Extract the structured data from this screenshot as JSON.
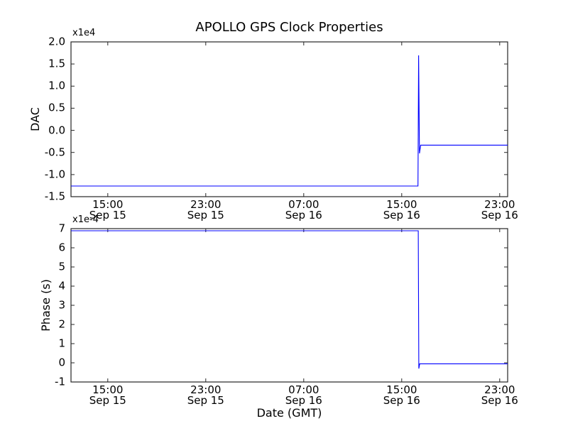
{
  "title": "APOLLO GPS Clock Properties",
  "xlabel": "Date (GMT)",
  "line_color": "#0000ff",
  "frame_color": "#262626",
  "chart_data": [
    {
      "type": "line",
      "position": "top",
      "ylabel": "DAC",
      "y_offset_label": "x1e4",
      "ylim": [
        -15000,
        20000
      ],
      "grid": false,
      "legend": null,
      "yticks": [
        {
          "value": 20000,
          "label": "2.0"
        },
        {
          "value": 15000,
          "label": "1.5"
        },
        {
          "value": 10000,
          "label": "1.0"
        },
        {
          "value": 5000,
          "label": "0.5"
        },
        {
          "value": 0,
          "label": "0.0"
        },
        {
          "value": -5000,
          "label": "-0.5"
        },
        {
          "value": -10000,
          "label": "-1.0"
        },
        {
          "value": -15000,
          "label": "-1.5"
        }
      ],
      "xlim_hours": [
        12.0,
        47.65
      ],
      "x_hours_reference": "hours after Sep 15 00:00 GMT",
      "xticks": [
        {
          "hour": 15,
          "time": "15:00",
          "date": "Sep 15"
        },
        {
          "hour": 23,
          "time": "23:00",
          "date": "Sep 15"
        },
        {
          "hour": 31,
          "time": "07:00",
          "date": "Sep 16"
        },
        {
          "hour": 39,
          "time": "15:00",
          "date": "Sep 16"
        },
        {
          "hour": 47,
          "time": "23:00",
          "date": "Sep 16"
        }
      ],
      "series": [
        {
          "name": "DAC",
          "color": "#0000ff",
          "points": [
            [
              12.0,
              -12590
            ],
            [
              40.33,
              -12590
            ],
            [
              40.38,
              16950
            ],
            [
              40.45,
              -5200
            ],
            [
              40.55,
              -3350
            ],
            [
              47.65,
              -3350
            ]
          ]
        }
      ]
    },
    {
      "type": "line",
      "position": "bottom",
      "ylabel": "Phase (s)",
      "y_offset_label": "x1e-4",
      "ylim": [
        -0.0001,
        0.0007
      ],
      "grid": false,
      "legend": null,
      "yticks": [
        {
          "value": 0.0007,
          "label": "7"
        },
        {
          "value": 0.0006,
          "label": "6"
        },
        {
          "value": 0.0005,
          "label": "5"
        },
        {
          "value": 0.0004,
          "label": "4"
        },
        {
          "value": 0.0003,
          "label": "3"
        },
        {
          "value": 0.0002,
          "label": "2"
        },
        {
          "value": 0.0001,
          "label": "1"
        },
        {
          "value": 0.0,
          "label": "0"
        },
        {
          "value": -0.0001,
          "label": "-1"
        }
      ],
      "xlim_hours": [
        12.0,
        47.65
      ],
      "x_hours_reference": "hours after Sep 15 00:00 GMT",
      "xticks": [
        {
          "hour": 15,
          "time": "15:00",
          "date": "Sep 15"
        },
        {
          "hour": 23,
          "time": "23:00",
          "date": "Sep 15"
        },
        {
          "hour": 31,
          "time": "07:00",
          "date": "Sep 16"
        },
        {
          "hour": 39,
          "time": "15:00",
          "date": "Sep 16"
        },
        {
          "hour": 47,
          "time": "23:00",
          "date": "Sep 16"
        }
      ],
      "series": [
        {
          "name": "Phase",
          "color": "#0000ff",
          "points": [
            [
              12.0,
              0.000689
            ],
            [
              40.35,
              0.000689
            ],
            [
              40.4,
              -3e-05
            ],
            [
              40.47,
              -5e-06
            ],
            [
              47.65,
              -5e-06
            ]
          ]
        }
      ]
    }
  ]
}
